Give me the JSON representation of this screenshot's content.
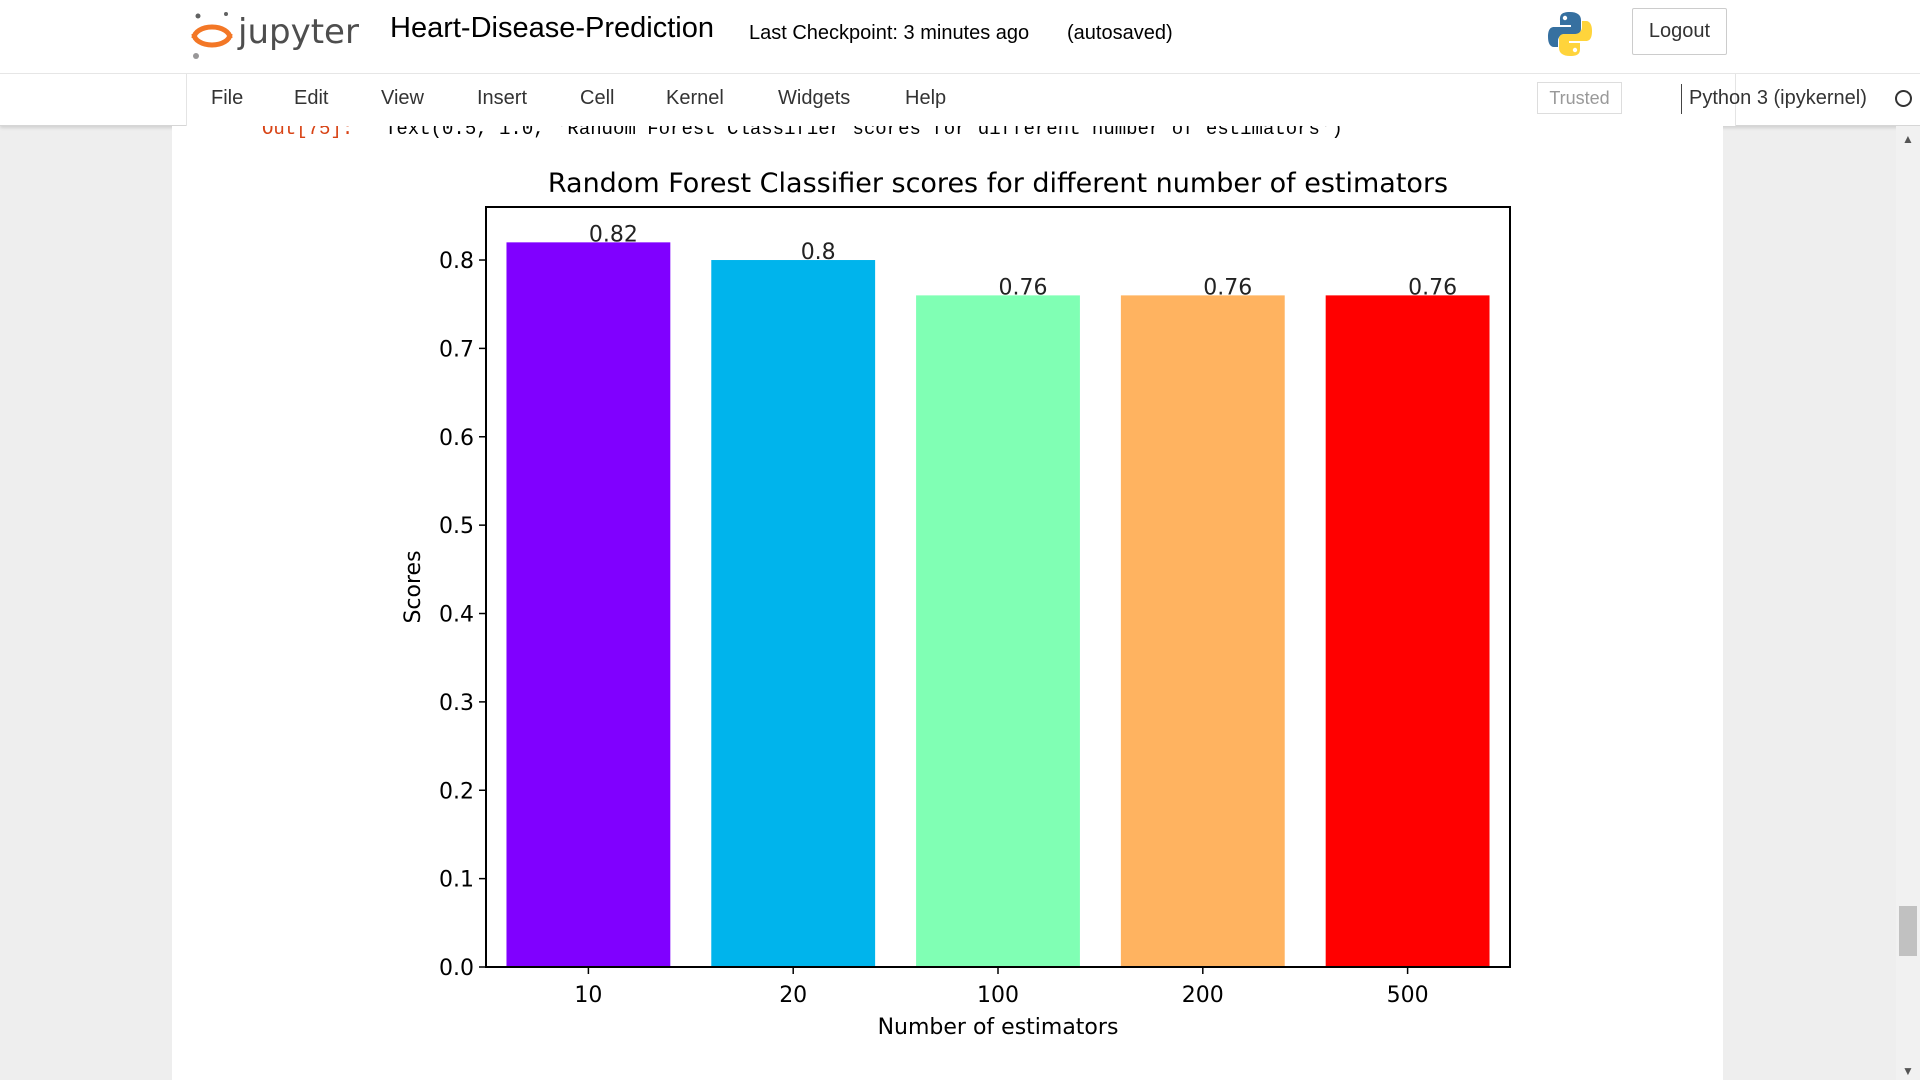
{
  "header": {
    "logo_text": "jupyter",
    "notebook_title": "Heart-Disease-Prediction",
    "checkpoint": "Last Checkpoint: 3 minutes ago",
    "autosave": "(autosaved)",
    "logout_label": "Logout"
  },
  "menu": {
    "items": [
      "File",
      "Edit",
      "View",
      "Insert",
      "Cell",
      "Kernel",
      "Widgets",
      "Help"
    ],
    "trusted": "Trusted",
    "kernel": "Python 3 (ipykernel)"
  },
  "output": {
    "prompt": "Out[75]:",
    "text": "Text(0.5, 1.0, 'Random Forest Classifier scores for different number of estimators')"
  },
  "colors": {
    "jupyter_orange": "#F37726",
    "prompt_red": "#D84315"
  },
  "chart_data": {
    "type": "bar",
    "title": "Random Forest Classifier scores for different number of estimators",
    "xlabel": "Number of estimators",
    "ylabel": "Scores",
    "categories": [
      "10",
      "20",
      "100",
      "200",
      "500"
    ],
    "values": [
      0.82,
      0.8,
      0.76,
      0.76,
      0.76
    ],
    "value_labels": [
      "0.82",
      "0.8",
      "0.76",
      "0.76",
      "0.76"
    ],
    "colors": [
      "#8000FF",
      "#00B4EC",
      "#80FFB4",
      "#FFB360",
      "#FF0000"
    ],
    "ylim": [
      0,
      0.86
    ],
    "yticks": [
      "0.0",
      "0.1",
      "0.2",
      "0.3",
      "0.4",
      "0.5",
      "0.6",
      "0.7",
      "0.8"
    ],
    "grid": false
  }
}
